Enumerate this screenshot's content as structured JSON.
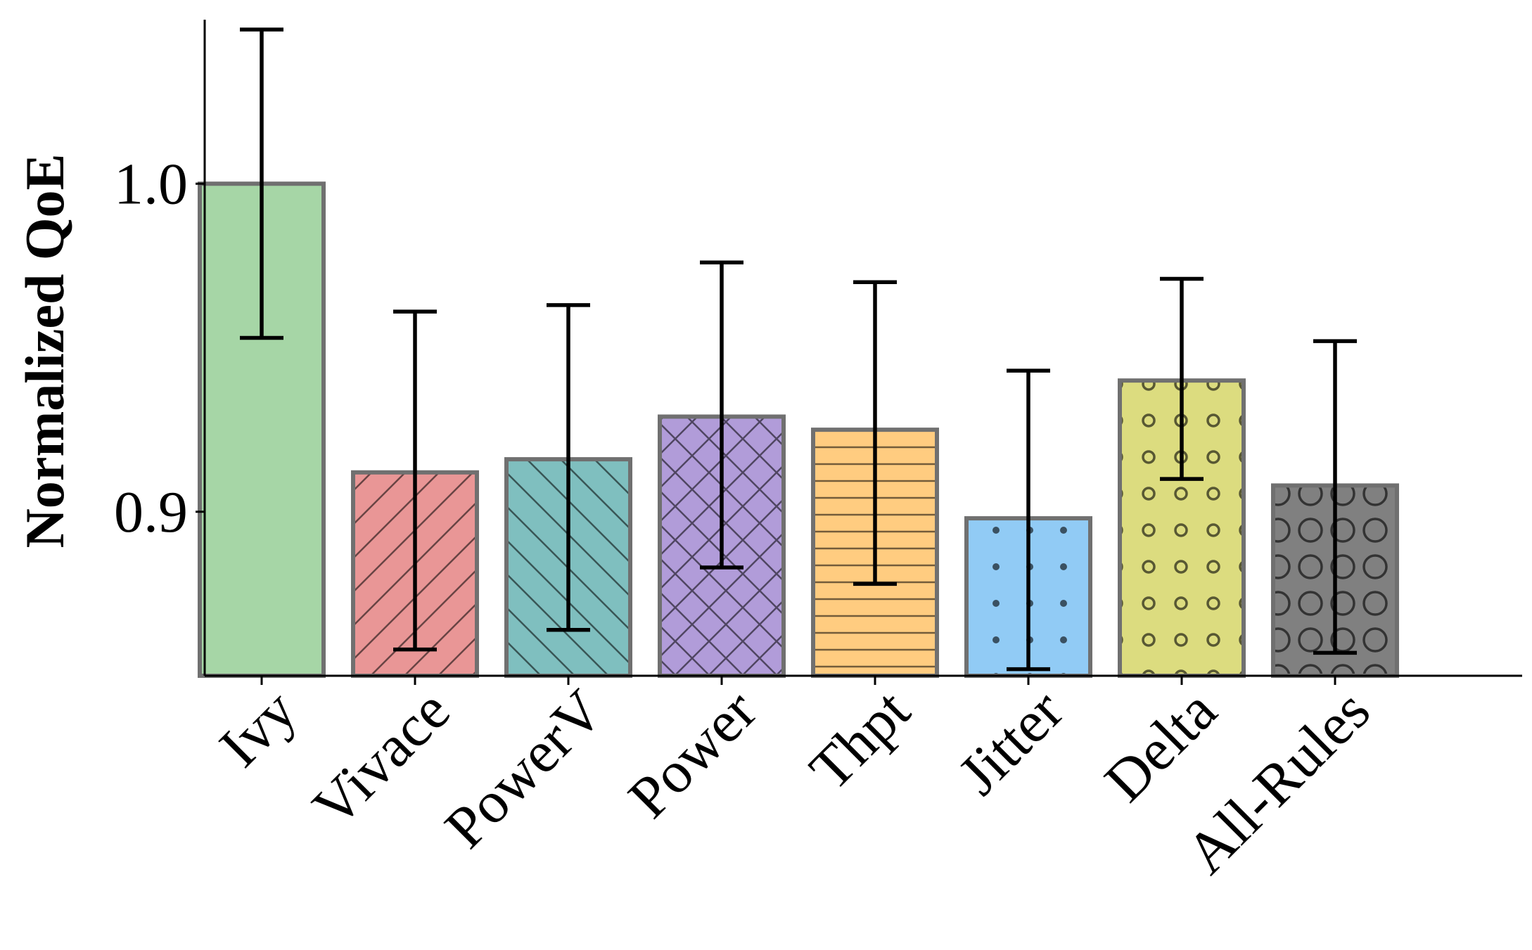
{
  "chart_data": {
    "type": "bar",
    "title": "",
    "xlabel": "",
    "ylabel": "Normalized QoE",
    "ylim": [
      0.85,
      1.05
    ],
    "yticks": [
      0.9,
      1.0
    ],
    "ytick_labels": [
      "0.9",
      "1.0"
    ],
    "categories": [
      "Ivy",
      "Vivace",
      "PowerV",
      "Power",
      "Thpt",
      "Jitter",
      "Delta",
      "All-Rules"
    ],
    "values": [
      1.0,
      0.912,
      0.916,
      0.929,
      0.925,
      0.898,
      0.94,
      0.908
    ],
    "error_low": [
      0.953,
      0.858,
      0.864,
      0.883,
      0.878,
      0.852,
      0.91,
      0.857
    ],
    "error_high": [
      1.047,
      0.961,
      0.963,
      0.976,
      0.97,
      0.943,
      0.971,
      0.952
    ],
    "grid": false,
    "colors": [
      "#a6d6a6",
      "#e99696",
      "#7fbfbf",
      "#b19cd9",
      "#ffcc80",
      "#91cbf5",
      "#dcdc7f",
      "#808080"
    ],
    "patterns": [
      "none",
      "diagonal-up",
      "diagonal-down",
      "crosshatch",
      "horizontal",
      "dots",
      "small-circles",
      "large-circles"
    ]
  }
}
